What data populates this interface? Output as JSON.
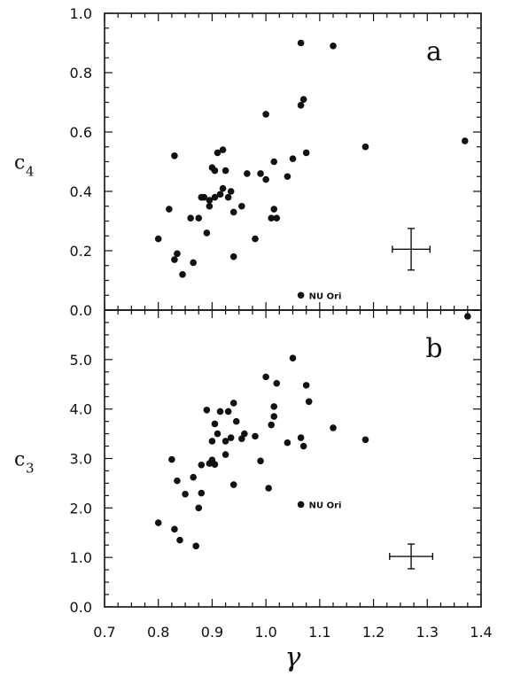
{
  "figure": {
    "xlabel": "γ",
    "xticks": [
      "0.7",
      "0.8",
      "0.9",
      "1.0",
      "1.1",
      "1.2",
      "1.3",
      "1.4"
    ],
    "colors": {
      "ink": "#111111",
      "background": "#ffffff"
    }
  },
  "chart_data": [
    {
      "type": "scatter",
      "panel_label": "a",
      "ylabel_main": "c",
      "ylabel_sub": "4",
      "xlabel": "γ",
      "xlim": [
        0.7,
        1.4
      ],
      "ylim": [
        0.0,
        1.0
      ],
      "yticks": [
        "0.0",
        "0.2",
        "0.4",
        "0.6",
        "0.8",
        "1.0"
      ],
      "grid": false,
      "annotation": {
        "text": "NU Ori",
        "x": 1.065,
        "y": 0.05
      },
      "error_bar": {
        "x": 1.27,
        "y": 0.205,
        "xerr": 0.035,
        "yerr": 0.07
      },
      "points": [
        [
          0.8,
          0.24
        ],
        [
          0.82,
          0.34
        ],
        [
          0.83,
          0.52
        ],
        [
          0.83,
          0.17
        ],
        [
          0.835,
          0.19
        ],
        [
          0.845,
          0.12
        ],
        [
          0.86,
          0.31
        ],
        [
          0.865,
          0.16
        ],
        [
          0.875,
          0.31
        ],
        [
          0.88,
          0.38
        ],
        [
          0.885,
          0.38
        ],
        [
          0.89,
          0.26
        ],
        [
          0.895,
          0.35
        ],
        [
          0.895,
          0.37
        ],
        [
          0.9,
          0.48
        ],
        [
          0.905,
          0.47
        ],
        [
          0.905,
          0.38
        ],
        [
          0.91,
          0.53
        ],
        [
          0.915,
          0.39
        ],
        [
          0.92,
          0.54
        ],
        [
          0.92,
          0.41
        ],
        [
          0.925,
          0.47
        ],
        [
          0.93,
          0.38
        ],
        [
          0.935,
          0.4
        ],
        [
          0.94,
          0.33
        ],
        [
          0.94,
          0.18
        ],
        [
          0.955,
          0.35
        ],
        [
          0.965,
          0.46
        ],
        [
          0.98,
          0.24
        ],
        [
          0.99,
          0.46
        ],
        [
          1.0,
          0.44
        ],
        [
          1.0,
          0.66
        ],
        [
          1.01,
          0.31
        ],
        [
          1.015,
          0.34
        ],
        [
          1.015,
          0.5
        ],
        [
          1.02,
          0.31
        ],
        [
          1.04,
          0.45
        ],
        [
          1.05,
          0.51
        ],
        [
          1.065,
          0.69
        ],
        [
          1.065,
          0.9
        ],
        [
          1.07,
          0.71
        ],
        [
          1.075,
          0.53
        ],
        [
          1.125,
          0.89
        ],
        [
          1.185,
          0.55
        ],
        [
          1.37,
          0.57
        ],
        [
          1.065,
          0.05
        ]
      ]
    },
    {
      "type": "scatter",
      "panel_label": "b",
      "ylabel_main": "c",
      "ylabel_sub": "3",
      "xlabel": "γ",
      "xlim": [
        0.7,
        1.4
      ],
      "ylim": [
        0.0,
        6.0
      ],
      "yticks": [
        "0.0",
        "1.0",
        "2.0",
        "3.0",
        "4.0",
        "5.0"
      ],
      "grid": false,
      "annotation": {
        "text": "NU Ori",
        "x": 1.065,
        "y": 2.07
      },
      "error_bar": {
        "x": 1.27,
        "y": 1.02,
        "xerr": 0.04,
        "yerr": 0.25
      },
      "points": [
        [
          0.8,
          1.7
        ],
        [
          0.825,
          2.98
        ],
        [
          0.83,
          1.57
        ],
        [
          0.835,
          2.55
        ],
        [
          0.84,
          1.35
        ],
        [
          0.85,
          2.28
        ],
        [
          0.865,
          2.62
        ],
        [
          0.87,
          1.23
        ],
        [
          0.875,
          2.0
        ],
        [
          0.88,
          2.3
        ],
        [
          0.88,
          2.87
        ],
        [
          0.89,
          3.98
        ],
        [
          0.895,
          2.9
        ],
        [
          0.9,
          2.97
        ],
        [
          0.9,
          3.35
        ],
        [
          0.905,
          2.88
        ],
        [
          0.905,
          3.7
        ],
        [
          0.91,
          3.5
        ],
        [
          0.915,
          3.95
        ],
        [
          0.925,
          3.08
        ],
        [
          0.925,
          3.35
        ],
        [
          0.93,
          3.95
        ],
        [
          0.935,
          3.42
        ],
        [
          0.94,
          4.12
        ],
        [
          0.94,
          2.47
        ],
        [
          0.945,
          3.75
        ],
        [
          0.955,
          3.4
        ],
        [
          0.96,
          3.5
        ],
        [
          0.98,
          3.45
        ],
        [
          0.99,
          2.95
        ],
        [
          1.0,
          4.65
        ],
        [
          1.005,
          2.4
        ],
        [
          1.01,
          3.68
        ],
        [
          1.015,
          3.85
        ],
        [
          1.015,
          4.05
        ],
        [
          1.02,
          4.52
        ],
        [
          1.04,
          3.32
        ],
        [
          1.05,
          5.03
        ],
        [
          1.065,
          3.42
        ],
        [
          1.07,
          3.25
        ],
        [
          1.075,
          4.48
        ],
        [
          1.08,
          4.15
        ],
        [
          1.125,
          3.62
        ],
        [
          1.185,
          3.38
        ],
        [
          1.065,
          2.07
        ]
      ]
    }
  ]
}
